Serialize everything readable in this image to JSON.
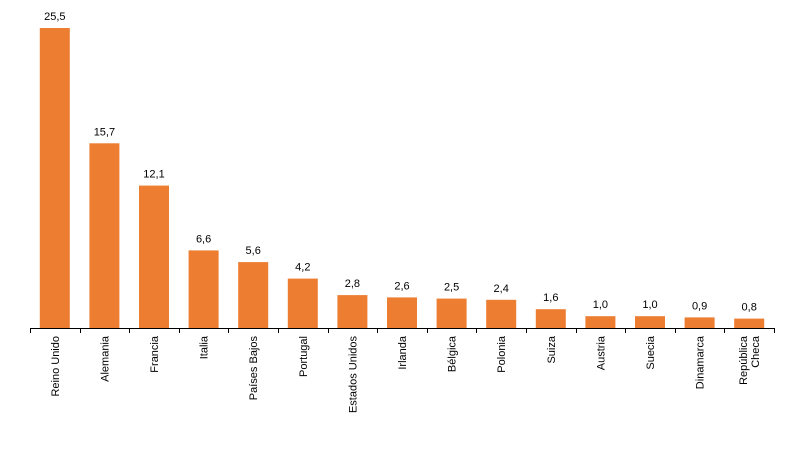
{
  "chart_data": {
    "type": "bar",
    "title": "",
    "xlabel": "",
    "ylabel": "",
    "ylim": [
      0,
      25.5
    ],
    "bar_color": "#ED7D31",
    "axis_color": "#000000",
    "categories": [
      [
        "Reino Unido"
      ],
      [
        "Alemania"
      ],
      [
        "Francia"
      ],
      [
        "Italia"
      ],
      [
        "Países Bajos"
      ],
      [
        "Portugal"
      ],
      [
        "Estados Unidos"
      ],
      [
        "Irlanda"
      ],
      [
        "Bélgica"
      ],
      [
        "Polonia"
      ],
      [
        "Suiza"
      ],
      [
        "Austria"
      ],
      [
        "Suecia"
      ],
      [
        "Dinamarca"
      ],
      [
        "República",
        "Checa"
      ]
    ],
    "values": [
      25.5,
      15.7,
      12.1,
      6.6,
      5.6,
      4.2,
      2.8,
      2.6,
      2.5,
      2.4,
      1.6,
      1.0,
      1.0,
      0.9,
      0.8
    ],
    "value_labels": [
      "25,5",
      "15,7",
      "12,1",
      "6,6",
      "5,6",
      "4,2",
      "2,8",
      "2,6",
      "2,5",
      "2,4",
      "1,6",
      "1,0",
      "1,0",
      "0,9",
      "0,8"
    ]
  }
}
